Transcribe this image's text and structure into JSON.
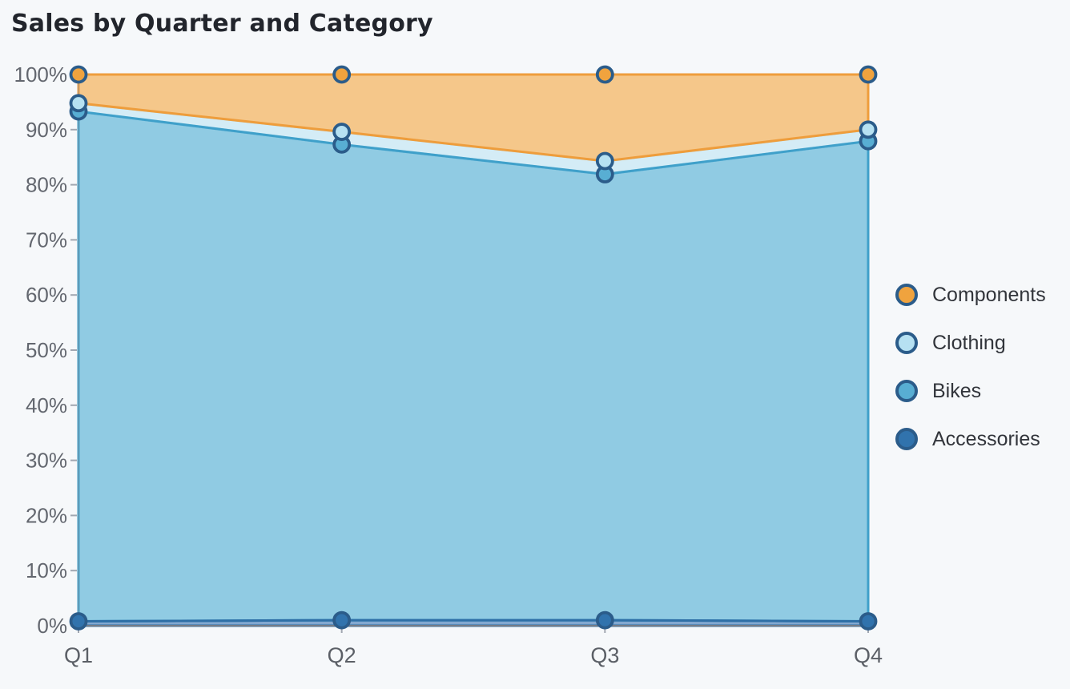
{
  "title": "Sales by Quarter and Category",
  "colors": {
    "background": "#f6f8fa",
    "title_text": "#22252c",
    "axis_text": "#63676f",
    "y_axis_line": "#8d94a0",
    "x_axis_line": "#757b86",
    "tick_mark": "#8d94a0",
    "point_stroke": "#2b5c8a"
  },
  "chart_data": {
    "type": "area",
    "stacking": "percent",
    "title": "Sales by Quarter and Category",
    "xlabel": "",
    "ylabel": "",
    "ylim": [
      0,
      100
    ],
    "grid": false,
    "legend_position": "right",
    "categories": [
      "Q1",
      "Q2",
      "Q3",
      "Q4"
    ],
    "y_ticks": [
      "100%",
      "90%",
      "80%",
      "70%",
      "60%",
      "50%",
      "40%",
      "30%",
      "20%",
      "10%",
      "0%"
    ],
    "series": [
      {
        "name": "Accessories",
        "values": [
          0.8,
          1.0,
          1.0,
          0.8
        ],
        "cumulative_top": [
          0.8,
          1.0,
          1.0,
          0.8
        ],
        "fill": "#83a8d0",
        "line": "#2e6fa6",
        "point_fill": "#3173ad"
      },
      {
        "name": "Bikes",
        "values": [
          92.5,
          86.3,
          80.9,
          87.1
        ],
        "cumulative_top": [
          93.3,
          87.3,
          81.9,
          87.9
        ],
        "fill": "#90cbe3",
        "line": "#3fa0ca",
        "point_fill": "#58aed3"
      },
      {
        "name": "Clothing",
        "values": [
          1.5,
          2.3,
          2.4,
          2.1
        ],
        "cumulative_top": [
          94.8,
          89.6,
          84.3,
          90.0
        ],
        "fill": "#d4ecf6",
        "line": "#a6d9ec",
        "point_fill": "#b6e1f2"
      },
      {
        "name": "Components",
        "values": [
          5.2,
          10.4,
          15.7,
          10.0
        ],
        "cumulative_top": [
          100,
          100,
          100,
          100
        ],
        "fill": "#f5c78a",
        "line": "#ee9d3c",
        "point_fill": "#f0a33e"
      }
    ],
    "legend_order": [
      "Components",
      "Clothing",
      "Bikes",
      "Accessories"
    ]
  }
}
